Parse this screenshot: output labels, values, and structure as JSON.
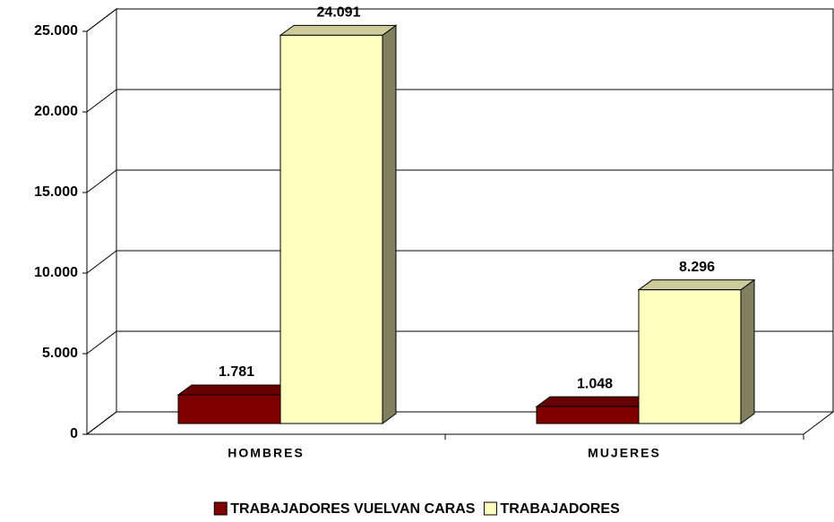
{
  "chart_data": {
    "type": "bar3d",
    "categories": [
      "HOMBRES",
      "MUJERES"
    ],
    "series": [
      {
        "name": "TRABAJADORES VUELVAN CARAS",
        "color": "#800000",
        "values": [
          1781,
          1048
        ],
        "value_labels": [
          "1.781",
          "1.048"
        ]
      },
      {
        "name": "TRABAJADORES",
        "color": "#ffffc0",
        "values": [
          24091,
          8296
        ],
        "value_labels": [
          "24.091",
          "8.296"
        ]
      }
    ],
    "ylim": [
      0,
      25000
    ],
    "yticks": [
      0,
      {
        "value": 5000,
        "label": "5.000"
      },
      {
        "value": 10000,
        "label": "10.000"
      },
      {
        "value": 15000,
        "label": "15.000"
      },
      {
        "value": 20000,
        "label": "20.000"
      },
      {
        "value": 25000,
        "label": "25.000"
      }
    ],
    "grid": true,
    "legend": "bottom"
  }
}
